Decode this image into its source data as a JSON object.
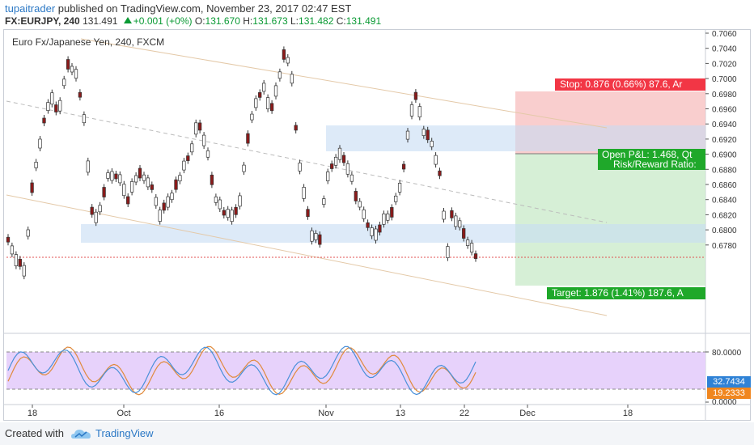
{
  "header": {
    "username": "tupaitrader",
    "published_text": "published on TradingView.com, November 23, 2017 02:47 EST",
    "symbol": "FX:EURJPY, 240",
    "last": "131.491",
    "change": "+0.001 (+0%)",
    "o_label": "O:",
    "o_value": "131.670",
    "h_label": "H:",
    "h_value": "131.673",
    "l_label": "L:",
    "l_value": "131.482",
    "c_label": "C:",
    "c_value": "131.491"
  },
  "chart_title": "Euro Fx/Japanese Yen, 240, FXCM",
  "price_axis": {
    "ticks": [
      "0.7060",
      "0.7040",
      "0.7020",
      "0.7000",
      "0.6980",
      "0.6960",
      "0.6940",
      "0.6920",
      "0.6900",
      "0.6880",
      "0.6860",
      "0.6840",
      "0.6820",
      "0.6800",
      "0.6780"
    ]
  },
  "indicator_axis": {
    "ticks": [
      "80.0000",
      "0.0000"
    ]
  },
  "indicator_badges": {
    "blue": "32.7434",
    "orange": "19.2333"
  },
  "time_axis": {
    "labels": [
      "18",
      "Oct",
      "16",
      "Nov",
      "13",
      "22",
      "Dec",
      "18"
    ]
  },
  "position_tool": {
    "stop_label": "Stop: 0.876 (0.66%) 87.6, Ar",
    "pnl_label": "Open P&L: 1.468, Qt",
    "rr_label": "Risk/Reward Ratio:",
    "target_label": "Target: 1.876 (1.41%) 187.6, A"
  },
  "footer": {
    "created_with": "Created with",
    "brand": "TradingView"
  },
  "colors": {
    "stop": "#f23645",
    "target": "#1fa82a",
    "link": "#2b78c5",
    "candle_up": "#ffffff",
    "candle_down": "#8b1a1a",
    "zone": "#dbe8f7",
    "stoch_k": "#4a90d9",
    "stoch_d": "#e08a3c",
    "stoch_band": "#e7d2fb"
  },
  "icons": {
    "logo": "tradingview-cloud-icon",
    "arrow": "up-triangle-icon"
  }
}
